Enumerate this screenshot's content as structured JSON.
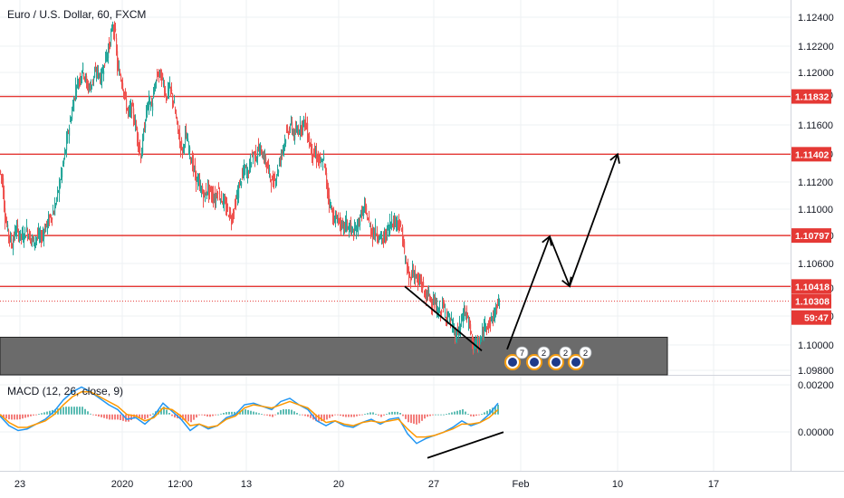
{
  "chart_data": {
    "type": "candlestick",
    "title": "Euro / U.S. Dollar, 60, FXCM",
    "symbol": "Euro / U.S. Dollar",
    "interval": "60",
    "source": "FXCM",
    "ylim": [
      1.0976,
      1.1255
    ],
    "y_ticks": [
      "1.12400",
      "1.12200",
      "1.12000",
      "1.11800",
      "1.11600",
      "1.11400",
      "1.11200",
      "1.11000",
      "1.10800",
      "1.10600",
      "1.10400",
      "1.10200",
      "1.10000",
      "1.09800"
    ],
    "x_ticks": [
      "23",
      "2020",
      "12:00",
      "13",
      "20",
      "27",
      "Feb",
      "10",
      "17"
    ],
    "last_price": "1.10308",
    "countdown": "59:47",
    "colors": {
      "up": "#26a69a",
      "down": "#ef5350",
      "level": "#e53935",
      "zone": "#6b6b6b",
      "macd": "#2196f3",
      "signal": "#ff9800"
    },
    "horizontal_levels": [
      {
        "label": "1.11832",
        "value": 1.11832
      },
      {
        "label": "1.11402",
        "value": 1.11402
      },
      {
        "label": "1.10797",
        "value": 1.10797
      },
      {
        "label": "1.10418",
        "value": 1.10418
      }
    ],
    "demand_zone": {
      "top": 1.1004,
      "bottom": 1.0976
    },
    "price_path_hourly": [
      [
        0,
        1.1128
      ],
      [
        3,
        1.1121
      ],
      [
        6,
        1.1094
      ],
      [
        10,
        1.108
      ],
      [
        14,
        1.1073
      ],
      [
        18,
        1.1085
      ],
      [
        22,
        1.108
      ],
      [
        26,
        1.1079
      ],
      [
        30,
        1.1084
      ],
      [
        34,
        1.1078
      ],
      [
        38,
        1.1075
      ],
      [
        42,
        1.108
      ],
      [
        46,
        1.1078
      ],
      [
        50,
        1.1085
      ],
      [
        55,
        1.1092
      ],
      [
        60,
        1.1098
      ],
      [
        64,
        1.111
      ],
      [
        68,
        1.1125
      ],
      [
        72,
        1.114
      ],
      [
        76,
        1.1158
      ],
      [
        80,
        1.1172
      ],
      [
        84,
        1.119
      ],
      [
        88,
        1.1196
      ],
      [
        92,
        1.1204
      ],
      [
        96,
        1.1192
      ],
      [
        100,
        1.119
      ],
      [
        104,
        1.1198
      ],
      [
        108,
        1.1202
      ],
      [
        112,
        1.1196
      ],
      [
        116,
        1.121
      ],
      [
        120,
        1.1218
      ],
      [
        123,
        1.1228
      ],
      [
        125,
        1.1236
      ],
      [
        128,
        1.1228
      ],
      [
        130,
        1.1205
      ],
      [
        133,
        1.12
      ],
      [
        136,
        1.1192
      ],
      [
        139,
        1.118
      ],
      [
        142,
        1.117
      ],
      [
        146,
        1.1175
      ],
      [
        150,
        1.1162
      ],
      [
        153,
        1.115
      ],
      [
        156,
        1.1138
      ],
      [
        159,
        1.1155
      ],
      [
        162,
        1.1172
      ],
      [
        165,
        1.118
      ],
      [
        168,
        1.1176
      ],
      [
        172,
        1.1192
      ],
      [
        175,
        1.1201
      ],
      [
        178,
        1.1198
      ],
      [
        181,
        1.1193
      ],
      [
        184,
        1.1182
      ],
      [
        187,
        1.119
      ],
      [
        190,
        1.1185
      ],
      [
        193,
        1.1175
      ],
      [
        196,
        1.1162
      ],
      [
        199,
        1.115
      ],
      [
        202,
        1.1142
      ],
      [
        205,
        1.1155
      ],
      [
        208,
        1.1148
      ],
      [
        211,
        1.1138
      ],
      [
        214,
        1.113
      ],
      [
        217,
        1.1122
      ],
      [
        220,
        1.1118
      ],
      [
        223,
        1.1113
      ],
      [
        226,
        1.1108
      ],
      [
        229,
        1.1115
      ],
      [
        232,
        1.1112
      ],
      [
        235,
        1.111
      ],
      [
        238,
        1.1106
      ],
      [
        241,
        1.1115
      ],
      [
        244,
        1.1108
      ],
      [
        247,
        1.1105
      ],
      [
        250,
        1.11
      ],
      [
        253,
        1.1097
      ],
      [
        256,
        1.1092
      ],
      [
        259,
        1.11
      ],
      [
        262,
        1.1108
      ],
      [
        265,
        1.1118
      ],
      [
        268,
        1.1124
      ],
      [
        271,
        1.113
      ],
      [
        274,
        1.1126
      ],
      [
        277,
        1.1135
      ],
      [
        280,
        1.1141
      ],
      [
        283,
        1.1139
      ],
      [
        286,
        1.1144
      ],
      [
        289,
        1.1142
      ],
      [
        292,
        1.1138
      ],
      [
        295,
        1.1132
      ],
      [
        298,
        1.1126
      ],
      [
        301,
        1.1118
      ],
      [
        304,
        1.1122
      ],
      [
        307,
        1.1128
      ],
      [
        310,
        1.1137
      ],
      [
        313,
        1.1146
      ],
      [
        316,
        1.1154
      ],
      [
        319,
        1.1158
      ],
      [
        322,
        1.1162
      ],
      [
        325,
        1.1154
      ],
      [
        328,
        1.1157
      ],
      [
        331,
        1.116
      ],
      [
        334,
        1.1162
      ],
      [
        337,
        1.1165
      ],
      [
        340,
        1.1156
      ],
      [
        343,
        1.1146
      ],
      [
        346,
        1.114
      ],
      [
        349,
        1.114
      ],
      [
        352,
        1.1136
      ],
      [
        355,
        1.1132
      ],
      [
        358,
        1.1136
      ],
      [
        361,
        1.1118
      ],
      [
        364,
        1.1106
      ],
      [
        367,
        1.1098
      ],
      [
        370,
        1.109
      ],
      [
        373,
        1.1094
      ],
      [
        376,
        1.1088
      ],
      [
        379,
        1.1084
      ],
      [
        382,
        1.109
      ],
      [
        385,
        1.1086
      ],
      [
        388,
        1.1085
      ],
      [
        391,
        1.1081
      ],
      [
        394,
        1.1085
      ],
      [
        397,
        1.1091
      ],
      [
        400,
        1.1096
      ],
      [
        403,
        1.11
      ],
      [
        406,
        1.1094
      ],
      [
        409,
        1.1086
      ],
      [
        412,
        1.1081
      ],
      [
        415,
        1.1083
      ],
      [
        418,
        1.108
      ],
      [
        421,
        1.1078
      ],
      [
        424,
        1.1076
      ],
      [
        427,
        1.1082
      ],
      [
        430,
        1.1086
      ],
      [
        433,
        1.1092
      ],
      [
        436,
        1.1089
      ],
      [
        439,
        1.1092
      ],
      [
        442,
        1.1086
      ],
      [
        445,
        1.108
      ],
      [
        447,
        1.1064
      ],
      [
        450,
        1.1054
      ],
      [
        453,
        1.1047
      ],
      [
        456,
        1.1054
      ],
      [
        459,
        1.105
      ],
      [
        462,
        1.1044
      ],
      [
        465,
        1.1046
      ],
      [
        468,
        1.1039
      ],
      [
        471,
        1.1034
      ],
      [
        474,
        1.1036
      ],
      [
        477,
        1.1031
      ],
      [
        480,
        1.1029
      ],
      [
        483,
        1.1024
      ],
      [
        486,
        1.1022
      ],
      [
        489,
        1.1028
      ],
      [
        492,
        1.1022
      ],
      [
        495,
        1.102
      ],
      [
        498,
        1.1016
      ],
      [
        501,
        1.101
      ],
      [
        504,
        1.1004
      ],
      [
        507,
        1.1009
      ],
      [
        510,
        1.1016
      ],
      [
        513,
        1.1024
      ],
      [
        516,
        1.102
      ],
      [
        519,
        1.1012
      ],
      [
        522,
        1.1
      ],
      [
        525,
        1.0998
      ],
      [
        528,
        1.0998
      ],
      [
        531,
        1.1001
      ],
      [
        534,
        1.1008
      ],
      [
        537,
        1.1016
      ],
      [
        540,
        1.1013
      ],
      [
        543,
        1.1017
      ],
      [
        546,
        1.1021
      ],
      [
        549,
        1.1026
      ],
      [
        551,
        1.1031
      ]
    ],
    "trend_lines": [
      {
        "from": [
          447,
          1.10418
        ],
        "to": [
          532,
          1.0994
        ]
      },
      {
        "from": [
          560,
          1.0995
        ],
        "to": [
          607,
          1.1079
        ]
      },
      {
        "from": [
          607,
          1.1079
        ],
        "to": [
          629,
          1.1042
        ]
      },
      {
        "from": [
          629,
          1.1042
        ],
        "to": [
          682,
          1.11402
        ]
      }
    ],
    "event_markers": [
      "7",
      "2",
      "2",
      "2"
    ],
    "macd": {
      "label": "MACD (12, 26, close, 9)",
      "ylim": [
        -0.0035,
        0.0024
      ],
      "y_ticks": [
        "0.00200",
        "0.00000"
      ],
      "macd_path": [
        [
          0,
          -0.0001
        ],
        [
          10,
          -0.0007
        ],
        [
          20,
          -0.001
        ],
        [
          30,
          -0.0009
        ],
        [
          40,
          -0.0006
        ],
        [
          50,
          -0.0003
        ],
        [
          60,
          0.0002
        ],
        [
          70,
          0.0009
        ],
        [
          80,
          0.0014
        ],
        [
          90,
          0.0017
        ],
        [
          100,
          0.0014
        ],
        [
          110,
          0.001
        ],
        [
          120,
          0.0006
        ],
        [
          130,
          0.0003
        ],
        [
          140,
          -0.0003
        ],
        [
          150,
          -0.0002
        ],
        [
          160,
          -0.0006
        ],
        [
          170,
          -0.0001
        ],
        [
          180,
          0.0007
        ],
        [
          190,
          0.0002
        ],
        [
          200,
          -0.0003
        ],
        [
          210,
          -0.001
        ],
        [
          220,
          -0.0006
        ],
        [
          230,
          -0.0009
        ],
        [
          240,
          -0.0007
        ],
        [
          250,
          -0.0002
        ],
        [
          260,
          0.0
        ],
        [
          270,
          0.0006
        ],
        [
          280,
          0.0007
        ],
        [
          290,
          0.0005
        ],
        [
          300,
          0.0003
        ],
        [
          310,
          0.0008
        ],
        [
          320,
          0.001
        ],
        [
          330,
          0.0006
        ],
        [
          340,
          0.0003
        ],
        [
          350,
          -0.0004
        ],
        [
          360,
          -0.0007
        ],
        [
          370,
          -0.0004
        ],
        [
          380,
          -0.0007
        ],
        [
          390,
          -0.0008
        ],
        [
          400,
          -0.0005
        ],
        [
          410,
          -0.0003
        ],
        [
          420,
          -0.0006
        ],
        [
          430,
          -0.0003
        ],
        [
          440,
          -0.0002
        ],
        [
          450,
          -0.0012
        ],
        [
          460,
          -0.0018
        ],
        [
          470,
          -0.0015
        ],
        [
          480,
          -0.0013
        ],
        [
          490,
          -0.0011
        ],
        [
          500,
          -0.0008
        ],
        [
          510,
          -0.0004
        ],
        [
          520,
          -0.0007
        ],
        [
          530,
          -0.0005
        ],
        [
          540,
          0.0
        ],
        [
          550,
          0.0007
        ]
      ],
      "signal_path": [
        [
          0,
          0.0
        ],
        [
          10,
          -0.0005
        ],
        [
          20,
          -0.0008
        ],
        [
          30,
          -0.0008
        ],
        [
          40,
          -0.0006
        ],
        [
          50,
          -0.0004
        ],
        [
          60,
          0.0
        ],
        [
          70,
          0.0006
        ],
        [
          80,
          0.0011
        ],
        [
          90,
          0.0014
        ],
        [
          100,
          0.0014
        ],
        [
          110,
          0.0011
        ],
        [
          120,
          0.0008
        ],
        [
          130,
          0.0005
        ],
        [
          140,
          0.0
        ],
        [
          150,
          -0.0001
        ],
        [
          160,
          -0.0004
        ],
        [
          170,
          -0.0002
        ],
        [
          180,
          0.0004
        ],
        [
          190,
          0.0003
        ],
        [
          200,
          -0.0001
        ],
        [
          210,
          -0.0007
        ],
        [
          220,
          -0.0006
        ],
        [
          230,
          -0.0008
        ],
        [
          240,
          -0.0007
        ],
        [
          250,
          -0.0003
        ],
        [
          260,
          -0.0001
        ],
        [
          270,
          0.0004
        ],
        [
          280,
          0.0006
        ],
        [
          290,
          0.0005
        ],
        [
          300,
          0.0004
        ],
        [
          310,
          0.0006
        ],
        [
          320,
          0.0008
        ],
        [
          330,
          0.0006
        ],
        [
          340,
          0.0004
        ],
        [
          350,
          -0.0001
        ],
        [
          360,
          -0.0005
        ],
        [
          370,
          -0.0004
        ],
        [
          380,
          -0.0006
        ],
        [
          390,
          -0.0007
        ],
        [
          400,
          -0.0005
        ],
        [
          410,
          -0.0004
        ],
        [
          420,
          -0.0005
        ],
        [
          430,
          -0.0004
        ],
        [
          440,
          -0.0003
        ],
        [
          450,
          -0.0009
        ],
        [
          460,
          -0.0014
        ],
        [
          470,
          -0.0014
        ],
        [
          480,
          -0.0013
        ],
        [
          490,
          -0.0011
        ],
        [
          500,
          -0.0009
        ],
        [
          510,
          -0.0006
        ],
        [
          520,
          -0.0006
        ],
        [
          530,
          -0.0005
        ],
        [
          540,
          -0.0002
        ],
        [
          550,
          0.0003
        ]
      ],
      "trend_line": {
        "from": [
          472,
          -0.0027
        ],
        "to": [
          556,
          -0.0011
        ]
      }
    }
  }
}
